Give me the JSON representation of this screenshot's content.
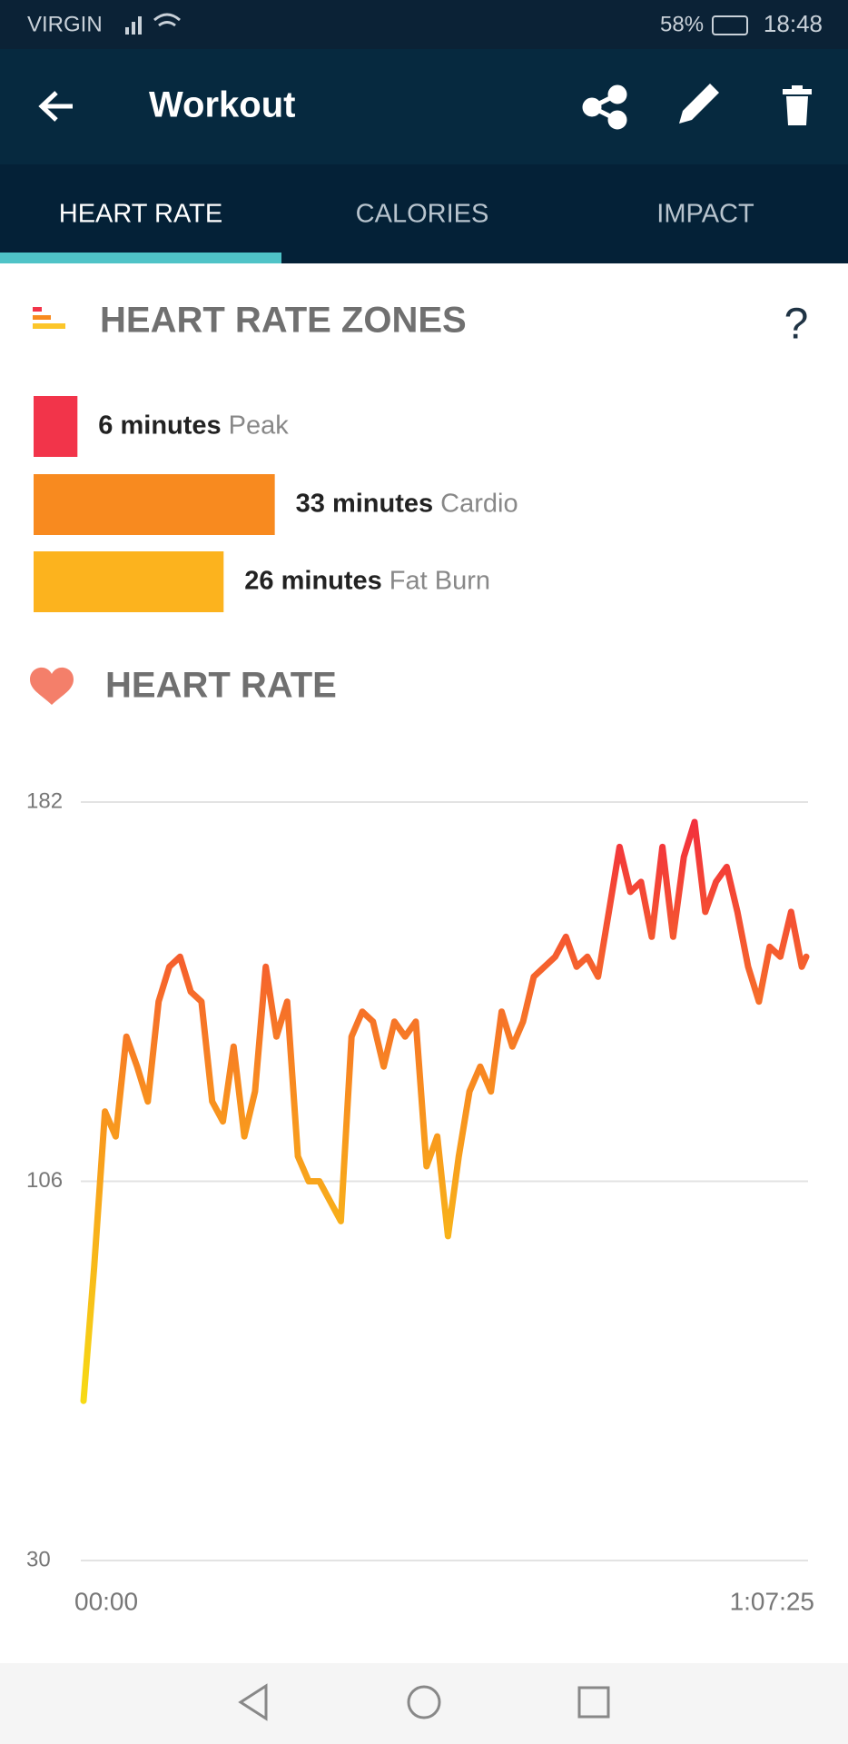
{
  "status_bar": {
    "carrier": "VIRGIN",
    "battery": "58%",
    "time": "18:48"
  },
  "toolbar": {
    "title": "Workout"
  },
  "tabs": [
    "HEART RATE",
    "CALORIES",
    "IMPACT"
  ],
  "zones_section": {
    "title": "HEART RATE ZONES",
    "help": "?"
  },
  "zones": {
    "type": "bar",
    "categories": [
      "Peak",
      "Cardio",
      "Fat Burn"
    ],
    "values": [
      6,
      33,
      26
    ],
    "value_labels": [
      "6 minutes",
      "33 minutes",
      "26 minutes"
    ],
    "colors": [
      "#f2344a",
      "#f88a1f",
      "#fcb31e"
    ]
  },
  "heart_rate_section": {
    "title": "HEART RATE"
  },
  "chart_data": {
    "type": "line",
    "x": [
      0,
      60,
      120,
      180,
      240,
      300,
      360,
      420,
      480,
      540,
      600,
      660,
      720,
      780,
      840,
      900,
      960,
      1020,
      1080,
      1140,
      1200,
      1260,
      1320,
      1380,
      1440,
      1500,
      1560,
      1620,
      1680,
      1740,
      1800,
      1860,
      1920,
      1980,
      2040,
      2100,
      2160,
      2220,
      2280,
      2340,
      2400,
      2460,
      2520,
      2580,
      2640,
      2700,
      2760,
      2820,
      2880,
      2940,
      3000,
      3060,
      3120,
      3180,
      3240,
      3300,
      3360,
      3420,
      3480,
      3540,
      3600,
      3660,
      3720,
      3780,
      3840,
      3900,
      3960,
      4020,
      4045
    ],
    "values": [
      62,
      89,
      120,
      115,
      135,
      129,
      122,
      142,
      149,
      151,
      144,
      142,
      122,
      118,
      133,
      115,
      124,
      149,
      135,
      142,
      111,
      106,
      106,
      102,
      98,
      135,
      140,
      138,
      129,
      138,
      135,
      138,
      109,
      115,
      95,
      111,
      124,
      129,
      124,
      140,
      133,
      138,
      147,
      149,
      151,
      155,
      149,
      151,
      147,
      160,
      173,
      164,
      166,
      155,
      173,
      155,
      171,
      178,
      160,
      166,
      169,
      160,
      149,
      142,
      153,
      151,
      160,
      149,
      151
    ],
    "xlim": [
      0,
      4045
    ],
    "xticks": [
      {
        "value": 0,
        "label": "00:00"
      },
      {
        "value": 4045,
        "label": "1:07:25"
      }
    ],
    "ylim": [
      30,
      182
    ],
    "yticks": [
      30,
      106,
      182
    ],
    "grid": true,
    "color_scale": [
      "#f7dc14",
      "#f8921e",
      "#f2283f"
    ]
  }
}
